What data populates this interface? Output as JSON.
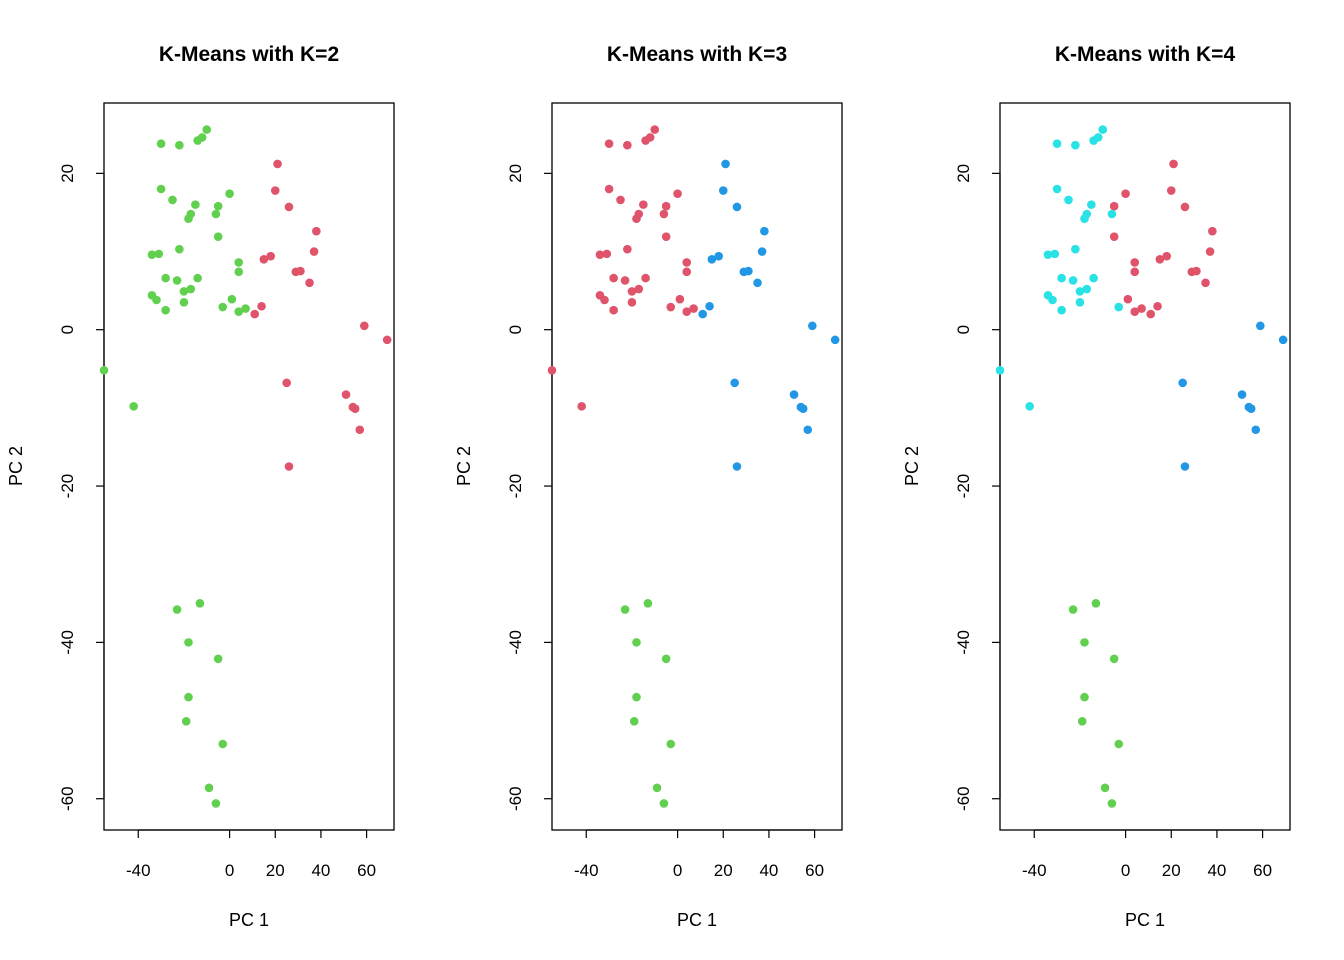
{
  "colors": {
    "cluster_1": "#61D04F",
    "cluster_2": "#DF536B",
    "cluster_3": "#2297E6",
    "cluster_4": "#28E2E5",
    "axis": "#000000",
    "background": "#ffffff"
  },
  "chart_data": [
    {
      "type": "scatter",
      "title": "K-Means with K=2",
      "xlabel": "PC 1",
      "ylabel": "PC 2",
      "xlim": [
        -55,
        72
      ],
      "ylim": [
        -64,
        29
      ],
      "xticks": [
        "-40",
        "0",
        "20",
        "40",
        "60"
      ],
      "yticks": [
        "-60",
        "-40",
        "-20",
        "0",
        "20"
      ],
      "grid": false,
      "legend": "none",
      "points": [
        {
          "x": -55,
          "y": -5.2,
          "c": 1
        },
        {
          "x": -42,
          "y": -9.8,
          "c": 1
        },
        {
          "x": -30,
          "y": 23.8,
          "c": 1
        },
        {
          "x": -22,
          "y": 23.6,
          "c": 1
        },
        {
          "x": -14,
          "y": 24.2,
          "c": 1
        },
        {
          "x": -12,
          "y": 24.6,
          "c": 1
        },
        {
          "x": -10,
          "y": 25.6,
          "c": 1
        },
        {
          "x": -30,
          "y": 18.0,
          "c": 1
        },
        {
          "x": -25,
          "y": 16.6,
          "c": 1
        },
        {
          "x": -17,
          "y": 14.8,
          "c": 1
        },
        {
          "x": -18,
          "y": 14.2,
          "c": 1
        },
        {
          "x": -15,
          "y": 16.0,
          "c": 1
        },
        {
          "x": -5,
          "y": 15.8,
          "c": 1
        },
        {
          "x": -6,
          "y": 14.8,
          "c": 1
        },
        {
          "x": 0,
          "y": 17.4,
          "c": 1
        },
        {
          "x": -5,
          "y": 11.9,
          "c": 1
        },
        {
          "x": -22,
          "y": 10.3,
          "c": 1
        },
        {
          "x": -34,
          "y": 9.6,
          "c": 1
        },
        {
          "x": -31,
          "y": 9.7,
          "c": 1
        },
        {
          "x": -28,
          "y": 6.6,
          "c": 1
        },
        {
          "x": -23,
          "y": 6.3,
          "c": 1
        },
        {
          "x": -14,
          "y": 6.6,
          "c": 1
        },
        {
          "x": -20,
          "y": 4.9,
          "c": 1
        },
        {
          "x": -17,
          "y": 5.2,
          "c": 1
        },
        {
          "x": -34,
          "y": 4.4,
          "c": 1
        },
        {
          "x": -32,
          "y": 3.8,
          "c": 1
        },
        {
          "x": -28,
          "y": 2.5,
          "c": 1
        },
        {
          "x": -20,
          "y": 3.5,
          "c": 1
        },
        {
          "x": -3,
          "y": 2.9,
          "c": 1
        },
        {
          "x": 1,
          "y": 3.9,
          "c": 1
        },
        {
          "x": 4,
          "y": 2.3,
          "c": 1
        },
        {
          "x": 7,
          "y": 2.7,
          "c": 1
        },
        {
          "x": 4,
          "y": 8.6,
          "c": 1
        },
        {
          "x": 4,
          "y": 7.4,
          "c": 1
        },
        {
          "x": 21,
          "y": 21.2,
          "c": 2
        },
        {
          "x": 20,
          "y": 17.8,
          "c": 2
        },
        {
          "x": 26,
          "y": 15.7,
          "c": 2
        },
        {
          "x": 38,
          "y": 12.6,
          "c": 2
        },
        {
          "x": 37,
          "y": 10.0,
          "c": 2
        },
        {
          "x": 18,
          "y": 9.4,
          "c": 2
        },
        {
          "x": 15,
          "y": 9.0,
          "c": 2
        },
        {
          "x": 29,
          "y": 7.4,
          "c": 2
        },
        {
          "x": 31,
          "y": 7.5,
          "c": 2
        },
        {
          "x": 35,
          "y": 6.0,
          "c": 2
        },
        {
          "x": 11,
          "y": 2.0,
          "c": 2
        },
        {
          "x": 14,
          "y": 3.0,
          "c": 2
        },
        {
          "x": 59,
          "y": 0.5,
          "c": 2
        },
        {
          "x": 69,
          "y": -1.3,
          "c": 2
        },
        {
          "x": 25,
          "y": -6.8,
          "c": 2
        },
        {
          "x": 51,
          "y": -8.3,
          "c": 2
        },
        {
          "x": 54,
          "y": -9.9,
          "c": 2
        },
        {
          "x": 55,
          "y": -10.1,
          "c": 2
        },
        {
          "x": 57,
          "y": -12.8,
          "c": 2
        },
        {
          "x": 26,
          "y": -17.5,
          "c": 2
        },
        {
          "x": -13,
          "y": -35.0,
          "c": 1
        },
        {
          "x": -23,
          "y": -35.8,
          "c": 1
        },
        {
          "x": -18,
          "y": -40.0,
          "c": 1
        },
        {
          "x": -5,
          "y": -42.1,
          "c": 1
        },
        {
          "x": -18,
          "y": -47.0,
          "c": 1
        },
        {
          "x": -19,
          "y": -50.1,
          "c": 1
        },
        {
          "x": -3,
          "y": -53.0,
          "c": 1
        },
        {
          "x": -9,
          "y": -58.6,
          "c": 1
        },
        {
          "x": -6,
          "y": -60.6,
          "c": 1
        }
      ]
    },
    {
      "type": "scatter",
      "title": "K-Means with K=3",
      "xlabel": "PC 1",
      "ylabel": "PC 2",
      "xlim": [
        -55,
        72
      ],
      "ylim": [
        -64,
        29
      ],
      "xticks": [
        "-40",
        "0",
        "20",
        "40",
        "60"
      ],
      "yticks": [
        "-60",
        "-40",
        "-20",
        "0",
        "20"
      ],
      "grid": false,
      "legend": "none",
      "points": [
        {
          "x": -55,
          "y": -5.2,
          "c": 2
        },
        {
          "x": -42,
          "y": -9.8,
          "c": 2
        },
        {
          "x": -30,
          "y": 23.8,
          "c": 2
        },
        {
          "x": -22,
          "y": 23.6,
          "c": 2
        },
        {
          "x": -14,
          "y": 24.2,
          "c": 2
        },
        {
          "x": -12,
          "y": 24.6,
          "c": 2
        },
        {
          "x": -10,
          "y": 25.6,
          "c": 2
        },
        {
          "x": -30,
          "y": 18.0,
          "c": 2
        },
        {
          "x": -25,
          "y": 16.6,
          "c": 2
        },
        {
          "x": -17,
          "y": 14.8,
          "c": 2
        },
        {
          "x": -18,
          "y": 14.2,
          "c": 2
        },
        {
          "x": -15,
          "y": 16.0,
          "c": 2
        },
        {
          "x": -5,
          "y": 15.8,
          "c": 2
        },
        {
          "x": -6,
          "y": 14.8,
          "c": 2
        },
        {
          "x": 0,
          "y": 17.4,
          "c": 2
        },
        {
          "x": -5,
          "y": 11.9,
          "c": 2
        },
        {
          "x": -22,
          "y": 10.3,
          "c": 2
        },
        {
          "x": -34,
          "y": 9.6,
          "c": 2
        },
        {
          "x": -31,
          "y": 9.7,
          "c": 2
        },
        {
          "x": -28,
          "y": 6.6,
          "c": 2
        },
        {
          "x": -23,
          "y": 6.3,
          "c": 2
        },
        {
          "x": -14,
          "y": 6.6,
          "c": 2
        },
        {
          "x": -20,
          "y": 4.9,
          "c": 2
        },
        {
          "x": -17,
          "y": 5.2,
          "c": 2
        },
        {
          "x": -34,
          "y": 4.4,
          "c": 2
        },
        {
          "x": -32,
          "y": 3.8,
          "c": 2
        },
        {
          "x": -28,
          "y": 2.5,
          "c": 2
        },
        {
          "x": -20,
          "y": 3.5,
          "c": 2
        },
        {
          "x": -3,
          "y": 2.9,
          "c": 2
        },
        {
          "x": 1,
          "y": 3.9,
          "c": 2
        },
        {
          "x": 4,
          "y": 2.3,
          "c": 2
        },
        {
          "x": 7,
          "y": 2.7,
          "c": 2
        },
        {
          "x": 4,
          "y": 8.6,
          "c": 2
        },
        {
          "x": 4,
          "y": 7.4,
          "c": 2
        },
        {
          "x": 21,
          "y": 21.2,
          "c": 3
        },
        {
          "x": 20,
          "y": 17.8,
          "c": 3
        },
        {
          "x": 26,
          "y": 15.7,
          "c": 3
        },
        {
          "x": 38,
          "y": 12.6,
          "c": 3
        },
        {
          "x": 37,
          "y": 10.0,
          "c": 3
        },
        {
          "x": 18,
          "y": 9.4,
          "c": 3
        },
        {
          "x": 15,
          "y": 9.0,
          "c": 3
        },
        {
          "x": 29,
          "y": 7.4,
          "c": 3
        },
        {
          "x": 31,
          "y": 7.5,
          "c": 3
        },
        {
          "x": 35,
          "y": 6.0,
          "c": 3
        },
        {
          "x": 11,
          "y": 2.0,
          "c": 3
        },
        {
          "x": 14,
          "y": 3.0,
          "c": 3
        },
        {
          "x": 59,
          "y": 0.5,
          "c": 3
        },
        {
          "x": 69,
          "y": -1.3,
          "c": 3
        },
        {
          "x": 25,
          "y": -6.8,
          "c": 3
        },
        {
          "x": 51,
          "y": -8.3,
          "c": 3
        },
        {
          "x": 54,
          "y": -9.9,
          "c": 3
        },
        {
          "x": 55,
          "y": -10.1,
          "c": 3
        },
        {
          "x": 57,
          "y": -12.8,
          "c": 3
        },
        {
          "x": 26,
          "y": -17.5,
          "c": 3
        },
        {
          "x": -13,
          "y": -35.0,
          "c": 1
        },
        {
          "x": -23,
          "y": -35.8,
          "c": 1
        },
        {
          "x": -18,
          "y": -40.0,
          "c": 1
        },
        {
          "x": -5,
          "y": -42.1,
          "c": 1
        },
        {
          "x": -18,
          "y": -47.0,
          "c": 1
        },
        {
          "x": -19,
          "y": -50.1,
          "c": 1
        },
        {
          "x": -3,
          "y": -53.0,
          "c": 1
        },
        {
          "x": -9,
          "y": -58.6,
          "c": 1
        },
        {
          "x": -6,
          "y": -60.6,
          "c": 1
        }
      ]
    },
    {
      "type": "scatter",
      "title": "K-Means with K=4",
      "xlabel": "PC 1",
      "ylabel": "PC 2",
      "xlim": [
        -55,
        72
      ],
      "ylim": [
        -64,
        29
      ],
      "xticks": [
        "-40",
        "0",
        "20",
        "40",
        "60"
      ],
      "yticks": [
        "-60",
        "-40",
        "-20",
        "0",
        "20"
      ],
      "grid": false,
      "legend": "none",
      "points": [
        {
          "x": -55,
          "y": -5.2,
          "c": 4
        },
        {
          "x": -42,
          "y": -9.8,
          "c": 4
        },
        {
          "x": -30,
          "y": 23.8,
          "c": 4
        },
        {
          "x": -22,
          "y": 23.6,
          "c": 4
        },
        {
          "x": -14,
          "y": 24.2,
          "c": 4
        },
        {
          "x": -12,
          "y": 24.6,
          "c": 4
        },
        {
          "x": -10,
          "y": 25.6,
          "c": 4
        },
        {
          "x": -30,
          "y": 18.0,
          "c": 4
        },
        {
          "x": -25,
          "y": 16.6,
          "c": 4
        },
        {
          "x": -17,
          "y": 14.8,
          "c": 4
        },
        {
          "x": -18,
          "y": 14.2,
          "c": 4
        },
        {
          "x": -15,
          "y": 16.0,
          "c": 4
        },
        {
          "x": -5,
          "y": 15.8,
          "c": 2
        },
        {
          "x": -6,
          "y": 14.8,
          "c": 4
        },
        {
          "x": 0,
          "y": 17.4,
          "c": 2
        },
        {
          "x": -5,
          "y": 11.9,
          "c": 2
        },
        {
          "x": -22,
          "y": 10.3,
          "c": 4
        },
        {
          "x": -34,
          "y": 9.6,
          "c": 4
        },
        {
          "x": -31,
          "y": 9.7,
          "c": 4
        },
        {
          "x": -28,
          "y": 6.6,
          "c": 4
        },
        {
          "x": -23,
          "y": 6.3,
          "c": 4
        },
        {
          "x": -14,
          "y": 6.6,
          "c": 4
        },
        {
          "x": -20,
          "y": 4.9,
          "c": 4
        },
        {
          "x": -17,
          "y": 5.2,
          "c": 4
        },
        {
          "x": -34,
          "y": 4.4,
          "c": 4
        },
        {
          "x": -32,
          "y": 3.8,
          "c": 4
        },
        {
          "x": -28,
          "y": 2.5,
          "c": 4
        },
        {
          "x": -20,
          "y": 3.5,
          "c": 4
        },
        {
          "x": -3,
          "y": 2.9,
          "c": 4
        },
        {
          "x": 1,
          "y": 3.9,
          "c": 2
        },
        {
          "x": 4,
          "y": 2.3,
          "c": 2
        },
        {
          "x": 7,
          "y": 2.7,
          "c": 2
        },
        {
          "x": 4,
          "y": 8.6,
          "c": 2
        },
        {
          "x": 4,
          "y": 7.4,
          "c": 2
        },
        {
          "x": 21,
          "y": 21.2,
          "c": 2
        },
        {
          "x": 20,
          "y": 17.8,
          "c": 2
        },
        {
          "x": 26,
          "y": 15.7,
          "c": 2
        },
        {
          "x": 38,
          "y": 12.6,
          "c": 2
        },
        {
          "x": 37,
          "y": 10.0,
          "c": 2
        },
        {
          "x": 18,
          "y": 9.4,
          "c": 2
        },
        {
          "x": 15,
          "y": 9.0,
          "c": 2
        },
        {
          "x": 29,
          "y": 7.4,
          "c": 2
        },
        {
          "x": 31,
          "y": 7.5,
          "c": 2
        },
        {
          "x": 35,
          "y": 6.0,
          "c": 2
        },
        {
          "x": 11,
          "y": 2.0,
          "c": 2
        },
        {
          "x": 14,
          "y": 3.0,
          "c": 2
        },
        {
          "x": 59,
          "y": 0.5,
          "c": 3
        },
        {
          "x": 69,
          "y": -1.3,
          "c": 3
        },
        {
          "x": 25,
          "y": -6.8,
          "c": 3
        },
        {
          "x": 51,
          "y": -8.3,
          "c": 3
        },
        {
          "x": 54,
          "y": -9.9,
          "c": 3
        },
        {
          "x": 55,
          "y": -10.1,
          "c": 3
        },
        {
          "x": 57,
          "y": -12.8,
          "c": 3
        },
        {
          "x": 26,
          "y": -17.5,
          "c": 3
        },
        {
          "x": -13,
          "y": -35.0,
          "c": 1
        },
        {
          "x": -23,
          "y": -35.8,
          "c": 1
        },
        {
          "x": -18,
          "y": -40.0,
          "c": 1
        },
        {
          "x": -5,
          "y": -42.1,
          "c": 1
        },
        {
          "x": -18,
          "y": -47.0,
          "c": 1
        },
        {
          "x": -19,
          "y": -50.1,
          "c": 1
        },
        {
          "x": -3,
          "y": -53.0,
          "c": 1
        },
        {
          "x": -9,
          "y": -58.6,
          "c": 1
        },
        {
          "x": -6,
          "y": -60.6,
          "c": 1
        }
      ]
    }
  ]
}
